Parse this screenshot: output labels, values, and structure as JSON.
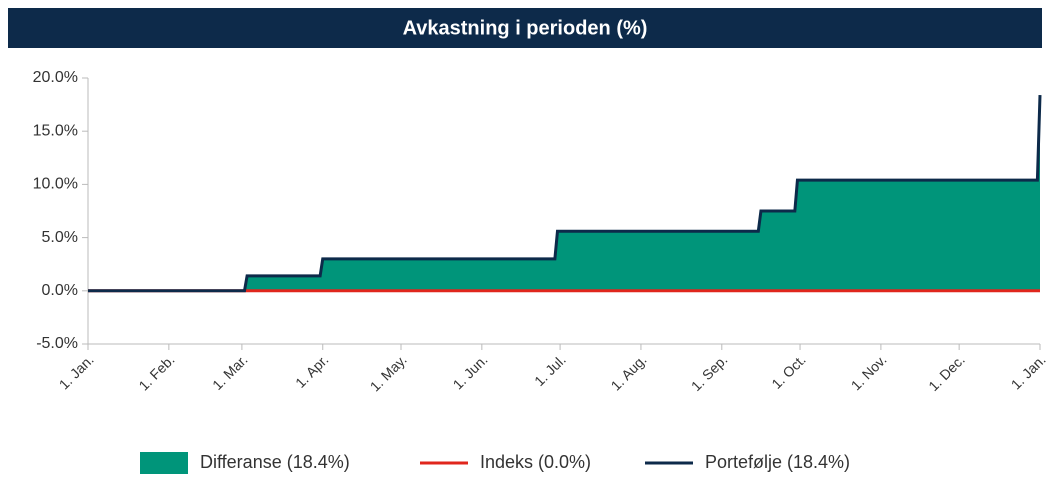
{
  "chart_data": {
    "type": "area-line",
    "title": "Avkastning i perioden (%)",
    "x": [
      0,
      60,
      61,
      89,
      90,
      179,
      180,
      257,
      258,
      271,
      272,
      364,
      365
    ],
    "series": [
      {
        "name": "Differanse (18.4%)",
        "color": "#00957a",
        "kind": "area",
        "values": [
          0,
          0,
          1.4,
          1.4,
          3.0,
          3.0,
          5.6,
          5.6,
          7.5,
          7.5,
          10.4,
          10.4,
          18.4
        ]
      },
      {
        "name": "Indeks (0.0%)",
        "color": "#e0261c",
        "kind": "line",
        "values": [
          0,
          0,
          0,
          0,
          0,
          0,
          0,
          0,
          0,
          0,
          0,
          0,
          0
        ]
      },
      {
        "name": "Portefølje (18.4%)",
        "color": "#0d2a4a",
        "kind": "line",
        "values": [
          0,
          0,
          1.4,
          1.4,
          3.0,
          3.0,
          5.6,
          5.6,
          7.5,
          7.5,
          10.4,
          10.4,
          18.4
        ]
      }
    ],
    "xlim": [
      0,
      365
    ],
    "xticks": [
      {
        "value": 0,
        "label": "1. Jan."
      },
      {
        "value": 31,
        "label": "1. Feb."
      },
      {
        "value": 59,
        "label": "1. Mar."
      },
      {
        "value": 90,
        "label": "1. Apr."
      },
      {
        "value": 120,
        "label": "1. May."
      },
      {
        "value": 151,
        "label": "1. Jun."
      },
      {
        "value": 181,
        "label": "1. Jul."
      },
      {
        "value": 212,
        "label": "1. Aug."
      },
      {
        "value": 243,
        "label": "1. Sep."
      },
      {
        "value": 273,
        "label": "1. Oct."
      },
      {
        "value": 304,
        "label": "1. Nov."
      },
      {
        "value": 334,
        "label": "1. Dec."
      },
      {
        "value": 365,
        "label": "1. Jan."
      }
    ],
    "ylim": [
      -5,
      20
    ],
    "yticks": [
      {
        "value": -5,
        "label": "-5.0%"
      },
      {
        "value": 0,
        "label": "0.0%"
      },
      {
        "value": 5,
        "label": "5.0%"
      },
      {
        "value": 10,
        "label": "10.0%"
      },
      {
        "value": 15,
        "label": "15.0%"
      },
      {
        "value": 20,
        "label": "20.0%"
      }
    ]
  }
}
